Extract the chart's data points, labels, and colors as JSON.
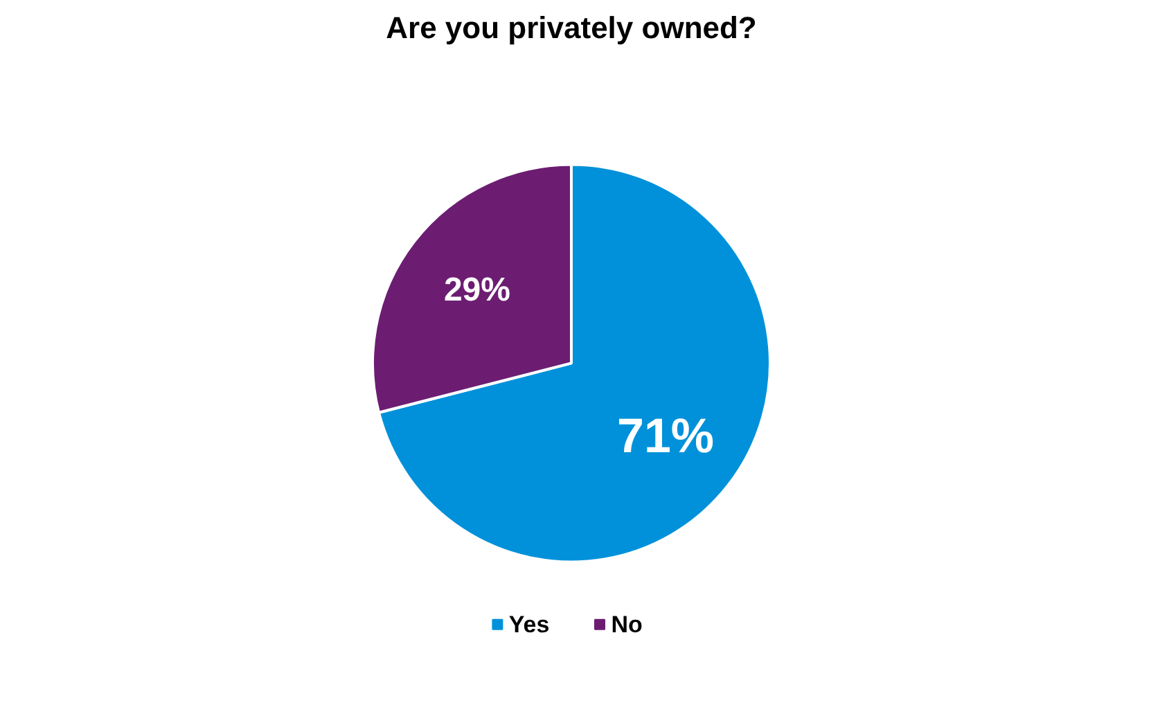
{
  "chart_data": {
    "type": "pie",
    "title": "Are you privately owned?",
    "categories": [
      "Yes",
      "No"
    ],
    "values": [
      71,
      29
    ],
    "colors": [
      "#0091da",
      "#6c1d72"
    ],
    "value_labels": [
      "71%",
      "29%"
    ],
    "legend": "bottom"
  }
}
